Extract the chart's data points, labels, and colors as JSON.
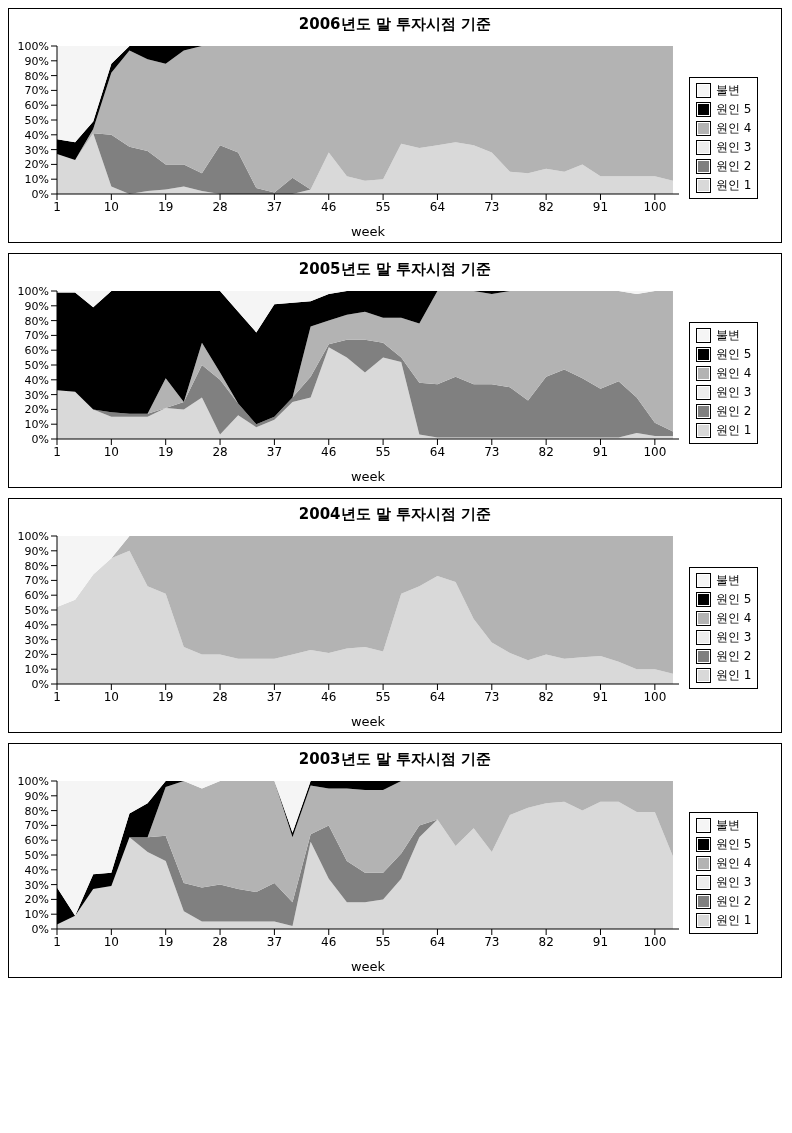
{
  "chart_data": [
    {
      "type": "area",
      "stacked": true,
      "title": "2006년도 말 투자시점 기준",
      "xlabel": "week",
      "legend": "right",
      "xlim": [
        1,
        104
      ],
      "xticks": [
        1,
        10,
        19,
        28,
        37,
        46,
        55,
        64,
        73,
        82,
        91,
        100
      ],
      "ylim": [
        0,
        100
      ],
      "yticks": [
        {
          "value": 0,
          "label": "0%"
        },
        {
          "value": 10,
          "label": "10%"
        },
        {
          "value": 20,
          "label": "20%"
        },
        {
          "value": 30,
          "label": "30%"
        },
        {
          "value": 40,
          "label": "40%"
        },
        {
          "value": 50,
          "label": "50%"
        },
        {
          "value": 60,
          "label": "60%"
        },
        {
          "value": 70,
          "label": "70%"
        },
        {
          "value": 80,
          "label": "80%"
        },
        {
          "value": 90,
          "label": "90%"
        },
        {
          "value": 100,
          "label": "100%"
        }
      ],
      "x": [
        1,
        4,
        7,
        10,
        13,
        16,
        19,
        22,
        25,
        28,
        31,
        34,
        37,
        40,
        43,
        46,
        49,
        52,
        55,
        58,
        61,
        64,
        67,
        70,
        73,
        76,
        79,
        82,
        85,
        88,
        91,
        94,
        97,
        100,
        103
      ],
      "series": [
        {
          "name": "원인 1",
          "color": "#d9d9d9",
          "values": [
            27,
            23,
            41,
            5,
            0,
            2,
            3,
            5,
            2,
            0,
            null,
            null,
            null,
            0,
            3,
            28,
            12,
            9,
            10,
            34,
            31,
            33,
            35,
            33,
            28,
            15,
            14,
            17,
            15,
            20,
            12,
            12,
            12,
            12,
            9
          ]
        },
        {
          "name": "원인 2",
          "color": "#808080",
          "values": [
            null,
            null,
            0,
            35,
            32,
            27,
            17,
            15,
            12,
            33,
            28,
            4,
            1,
            11,
            0,
            null,
            null,
            null,
            null,
            null,
            null,
            null,
            null,
            null,
            null,
            null,
            null,
            null,
            null,
            null,
            null,
            null,
            null,
            null,
            null
          ]
        },
        {
          "name": "원인 3",
          "color": "#ececec",
          "values": [
            null,
            null,
            null,
            null,
            null,
            null,
            null,
            null,
            null,
            null,
            null,
            null,
            null,
            null,
            null,
            null,
            null,
            null,
            null,
            null,
            null,
            null,
            null,
            null,
            null,
            null,
            null,
            null,
            null,
            null,
            null,
            null,
            null,
            null,
            null
          ]
        },
        {
          "name": "원인 4",
          "color": "#b3b3b3",
          "values": [
            null,
            0,
            3,
            42,
            65,
            62,
            68,
            77,
            86,
            67,
            72,
            96,
            99,
            89,
            97,
            72,
            88,
            91,
            90,
            66,
            69,
            67,
            65,
            67,
            72,
            85,
            86,
            83,
            85,
            80,
            88,
            88,
            88,
            88,
            91
          ]
        },
        {
          "name": "원인 5",
          "color": "#000000",
          "values": [
            10,
            12,
            5,
            6,
            3,
            9,
            12,
            3,
            0,
            null,
            null,
            null,
            null,
            null,
            null,
            null,
            null,
            null,
            null,
            null,
            null,
            null,
            null,
            null,
            null,
            null,
            null,
            null,
            null,
            null,
            null,
            null,
            null,
            null,
            null
          ]
        },
        {
          "name": "불변",
          "color": "#f5f5f5",
          "values": [
            63,
            65,
            51,
            12,
            0,
            null,
            null,
            null,
            null,
            null,
            null,
            null,
            null,
            null,
            null,
            null,
            null,
            null,
            null,
            null,
            null,
            null,
            null,
            null,
            null,
            null,
            null,
            null,
            null,
            null,
            null,
            null,
            null,
            null,
            null
          ]
        }
      ]
    },
    {
      "type": "area",
      "stacked": true,
      "title": "2005년도 말 투자시점 기준",
      "xlabel": "week",
      "legend": "right",
      "xlim": [
        1,
        104
      ],
      "xticks": [
        1,
        10,
        19,
        28,
        37,
        46,
        55,
        64,
        73,
        82,
        91,
        100
      ],
      "ylim": [
        0,
        100
      ],
      "yticks": [
        {
          "value": 0,
          "label": "0%"
        },
        {
          "value": 10,
          "label": "10%"
        },
        {
          "value": 20,
          "label": "20%"
        },
        {
          "value": 30,
          "label": "30%"
        },
        {
          "value": 40,
          "label": "40%"
        },
        {
          "value": 50,
          "label": "50%"
        },
        {
          "value": 60,
          "label": "60%"
        },
        {
          "value": 70,
          "label": "70%"
        },
        {
          "value": 80,
          "label": "80%"
        },
        {
          "value": 90,
          "label": "90%"
        },
        {
          "value": 100,
          "label": "100%"
        }
      ],
      "x": [
        1,
        4,
        7,
        10,
        13,
        16,
        19,
        22,
        25,
        28,
        31,
        34,
        37,
        40,
        43,
        46,
        49,
        52,
        55,
        58,
        61,
        64,
        67,
        70,
        73,
        76,
        79,
        82,
        85,
        88,
        91,
        94,
        97,
        100,
        103
      ],
      "series": [
        {
          "name": "원인 1",
          "color": "#d9d9d9",
          "values": [
            33,
            32,
            20,
            15,
            15,
            15,
            21,
            20,
            28,
            3,
            16,
            8,
            13,
            25,
            28,
            62,
            55,
            45,
            55,
            52,
            3,
            1,
            1,
            1,
            1,
            1,
            1,
            1,
            1,
            1,
            1,
            1,
            4,
            2,
            2
          ]
        },
        {
          "name": "원인 2",
          "color": "#808080",
          "values": [
            null,
            null,
            0,
            3,
            2,
            2,
            0,
            5,
            22,
            37,
            8,
            2,
            2,
            3,
            14,
            2,
            12,
            22,
            10,
            3,
            35,
            36,
            41,
            36,
            36,
            34,
            25,
            41,
            46,
            40,
            33,
            38,
            24,
            9,
            3
          ]
        },
        {
          "name": "원인 3",
          "color": "#ececec",
          "values": [
            null,
            null,
            null,
            null,
            null,
            null,
            null,
            null,
            null,
            null,
            null,
            null,
            null,
            null,
            null,
            null,
            null,
            null,
            null,
            null,
            null,
            null,
            null,
            null,
            null,
            null,
            null,
            null,
            null,
            null,
            null,
            null,
            null,
            null,
            null
          ]
        },
        {
          "name": "원인 4",
          "color": "#b3b3b3",
          "values": [
            null,
            null,
            null,
            null,
            null,
            0,
            20,
            0,
            15,
            5,
            0,
            null,
            null,
            0,
            34,
            16,
            17,
            19,
            17,
            27,
            40,
            63,
            58,
            63,
            61,
            65,
            74,
            58,
            53,
            59,
            66,
            61,
            70,
            89,
            95
          ]
        },
        {
          "name": "원인 5",
          "color": "#000000",
          "values": [
            66,
            67,
            69,
            82,
            83,
            83,
            59,
            75,
            35,
            55,
            62,
            62,
            76,
            64,
            17,
            18,
            16,
            14,
            18,
            18,
            22,
            0,
            null,
            0,
            2,
            0,
            null,
            null,
            null,
            null,
            null,
            null,
            null,
            null,
            null
          ]
        },
        {
          "name": "불변",
          "color": "#f5f5f5",
          "values": [
            1,
            1,
            11,
            0,
            null,
            null,
            null,
            null,
            null,
            0,
            14,
            28,
            9,
            8,
            7,
            2,
            0,
            null,
            null,
            null,
            null,
            null,
            null,
            null,
            null,
            null,
            null,
            null,
            null,
            null,
            null,
            0,
            2,
            0,
            null
          ]
        }
      ]
    },
    {
      "type": "area",
      "stacked": true,
      "title": "2004년도 말 투자시점 기준",
      "xlabel": "week",
      "legend": "right",
      "xlim": [
        1,
        104
      ],
      "xticks": [
        1,
        10,
        19,
        28,
        37,
        46,
        55,
        64,
        73,
        82,
        91,
        100
      ],
      "ylim": [
        0,
        100
      ],
      "yticks": [
        {
          "value": 0,
          "label": "0%"
        },
        {
          "value": 10,
          "label": "10%"
        },
        {
          "value": 20,
          "label": "20%"
        },
        {
          "value": 30,
          "label": "30%"
        },
        {
          "value": 40,
          "label": "40%"
        },
        {
          "value": 50,
          "label": "50%"
        },
        {
          "value": 60,
          "label": "60%"
        },
        {
          "value": 70,
          "label": "70%"
        },
        {
          "value": 80,
          "label": "80%"
        },
        {
          "value": 90,
          "label": "90%"
        },
        {
          "value": 100,
          "label": "100%"
        }
      ],
      "x": [
        1,
        4,
        7,
        10,
        13,
        16,
        19,
        22,
        25,
        28,
        31,
        34,
        37,
        40,
        43,
        46,
        49,
        52,
        55,
        58,
        61,
        64,
        67,
        70,
        73,
        76,
        79,
        82,
        85,
        88,
        91,
        94,
        97,
        100,
        103
      ],
      "series": [
        {
          "name": "원인 1",
          "color": "#d9d9d9",
          "values": [
            52,
            57,
            74,
            85,
            90,
            66,
            61,
            25,
            20,
            20,
            17,
            17,
            17,
            20,
            23,
            21,
            24,
            25,
            22,
            61,
            66,
            73,
            69,
            44,
            28,
            21,
            16,
            20,
            17,
            18,
            19,
            15,
            10,
            10,
            7
          ]
        },
        {
          "name": "원인 2",
          "color": "#808080",
          "values": [
            null,
            null,
            null,
            null,
            null,
            null,
            null,
            null,
            null,
            null,
            null,
            null,
            null,
            null,
            null,
            null,
            null,
            null,
            null,
            null,
            null,
            null,
            null,
            null,
            null,
            null,
            null,
            null,
            null,
            null,
            null,
            null,
            null,
            null,
            null
          ]
        },
        {
          "name": "원인 3",
          "color": "#ececec",
          "values": [
            null,
            null,
            null,
            null,
            null,
            null,
            null,
            null,
            null,
            null,
            null,
            null,
            null,
            null,
            null,
            null,
            null,
            null,
            null,
            null,
            null,
            null,
            null,
            null,
            null,
            null,
            null,
            null,
            null,
            null,
            null,
            null,
            null,
            null,
            null
          ]
        },
        {
          "name": "원인 4",
          "color": "#b3b3b3",
          "values": [
            null,
            null,
            null,
            0,
            10,
            34,
            39,
            75,
            80,
            80,
            83,
            83,
            83,
            80,
            77,
            79,
            76,
            75,
            78,
            39,
            34,
            27,
            31,
            56,
            72,
            79,
            84,
            80,
            83,
            82,
            81,
            85,
            90,
            90,
            93
          ]
        },
        {
          "name": "원인 5",
          "color": "#000000",
          "values": [
            null,
            null,
            null,
            null,
            null,
            null,
            null,
            null,
            null,
            null,
            null,
            null,
            null,
            null,
            null,
            null,
            null,
            null,
            null,
            null,
            null,
            null,
            null,
            null,
            null,
            null,
            null,
            null,
            null,
            null,
            null,
            null,
            null,
            null,
            null
          ]
        },
        {
          "name": "불변",
          "color": "#f5f5f5",
          "values": [
            48,
            43,
            26,
            15,
            0,
            null,
            null,
            null,
            null,
            null,
            null,
            null,
            null,
            null,
            null,
            null,
            null,
            null,
            null,
            null,
            null,
            null,
            null,
            null,
            null,
            null,
            null,
            null,
            null,
            null,
            null,
            null,
            null,
            null,
            null
          ]
        }
      ]
    },
    {
      "type": "area",
      "stacked": true,
      "title": "2003년도 말 투자시점 기준",
      "xlabel": "week",
      "legend": "right",
      "xlim": [
        1,
        104
      ],
      "xticks": [
        1,
        10,
        19,
        28,
        37,
        46,
        55,
        64,
        73,
        82,
        91,
        100
      ],
      "ylim": [
        0,
        100
      ],
      "yticks": [
        {
          "value": 0,
          "label": "0%"
        },
        {
          "value": 10,
          "label": "10%"
        },
        {
          "value": 20,
          "label": "20%"
        },
        {
          "value": 30,
          "label": "30%"
        },
        {
          "value": 40,
          "label": "40%"
        },
        {
          "value": 50,
          "label": "50%"
        },
        {
          "value": 60,
          "label": "60%"
        },
        {
          "value": 70,
          "label": "70%"
        },
        {
          "value": 80,
          "label": "80%"
        },
        {
          "value": 90,
          "label": "90%"
        },
        {
          "value": 100,
          "label": "100%"
        }
      ],
      "x": [
        1,
        4,
        7,
        10,
        13,
        16,
        19,
        22,
        25,
        28,
        31,
        34,
        37,
        40,
        43,
        46,
        49,
        52,
        55,
        58,
        61,
        64,
        67,
        70,
        73,
        76,
        79,
        82,
        85,
        88,
        91,
        94,
        97,
        100,
        103
      ],
      "series": [
        {
          "name": "원인 1",
          "color": "#d9d9d9",
          "values": [
            3,
            9,
            27,
            29,
            62,
            52,
            46,
            12,
            5,
            5,
            5,
            5,
            5,
            2,
            59,
            34,
            18,
            18,
            20,
            34,
            62,
            74,
            56,
            68,
            52,
            77,
            82,
            85,
            86,
            80,
            86,
            86,
            79,
            79,
            49
          ]
        },
        {
          "name": "원인 2",
          "color": "#808080",
          "values": [
            null,
            null,
            null,
            null,
            0,
            10,
            17,
            19,
            23,
            25,
            22,
            20,
            26,
            16,
            5,
            36,
            28,
            20,
            18,
            17,
            8,
            0,
            null,
            null,
            null,
            null,
            null,
            null,
            null,
            null,
            null,
            null,
            null,
            null,
            null
          ]
        },
        {
          "name": "원인 3",
          "color": "#ececec",
          "values": [
            null,
            null,
            null,
            null,
            null,
            null,
            null,
            null,
            null,
            null,
            null,
            null,
            null,
            null,
            null,
            null,
            null,
            null,
            null,
            null,
            null,
            null,
            null,
            null,
            null,
            null,
            null,
            null,
            null,
            null,
            null,
            null,
            null,
            null,
            null
          ]
        },
        {
          "name": "원인 4",
          "color": "#b3b3b3",
          "values": [
            null,
            null,
            null,
            null,
            null,
            0,
            33,
            69,
            67,
            70,
            73,
            75,
            69,
            44,
            33,
            25,
            49,
            56,
            56,
            49,
            30,
            26,
            44,
            32,
            48,
            23,
            18,
            15,
            14,
            20,
            14,
            14,
            21,
            21,
            51
          ]
        },
        {
          "name": "원인 5",
          "color": "#000000",
          "values": [
            25,
            0,
            10,
            9,
            16,
            23,
            4,
            0,
            null,
            null,
            null,
            null,
            0,
            3,
            3,
            5,
            5,
            6,
            6,
            0,
            null,
            null,
            null,
            null,
            null,
            null,
            null,
            null,
            null,
            null,
            null,
            null,
            null,
            null,
            null
          ]
        },
        {
          "name": "불변",
          "color": "#f5f5f5",
          "values": [
            72,
            91,
            63,
            62,
            22,
            15,
            0,
            0,
            5,
            0,
            null,
            null,
            0,
            35,
            0,
            null,
            null,
            null,
            null,
            null,
            null,
            null,
            null,
            null,
            null,
            null,
            null,
            null,
            null,
            null,
            null,
            null,
            null,
            null,
            null
          ]
        }
      ]
    }
  ]
}
